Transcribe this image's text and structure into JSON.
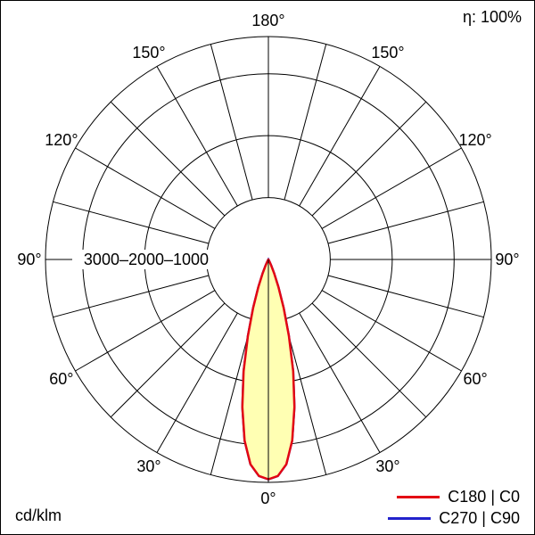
{
  "chart_data": {
    "type": "polar",
    "units": "cd/klm",
    "efficiency": "η: 100%",
    "angle_ticks_deg": [
      0,
      30,
      60,
      90,
      120,
      150,
      180
    ],
    "angle_tick_labels": [
      "0°",
      "30°",
      "60°",
      "90°",
      "120°",
      "150°",
      "180°"
    ],
    "angle_grid_step_deg": 15,
    "radial_ticks": [
      1000,
      2000,
      3000
    ],
    "radial_axis_label": "3000–2000–1000",
    "r_max": 3600,
    "grid_color": "#000000",
    "curve_fill": "#ffffb3",
    "series": [
      {
        "name": "C180 | C0",
        "color": "#e30613",
        "symmetric": true,
        "points": [
          [
            0,
            3550
          ],
          [
            2.5,
            3500
          ],
          [
            5,
            3320
          ],
          [
            7.5,
            2950
          ],
          [
            10,
            2420
          ],
          [
            12.5,
            1850
          ],
          [
            15,
            1280
          ],
          [
            17.5,
            820
          ],
          [
            20,
            470
          ],
          [
            22.5,
            240
          ],
          [
            25,
            110
          ],
          [
            27.5,
            45
          ],
          [
            30,
            12
          ],
          [
            32.5,
            0
          ]
        ]
      },
      {
        "name": "C270 | C90",
        "color": "#2222cc",
        "symmetric": true,
        "points": [
          [
            0,
            3550
          ],
          [
            2.5,
            3500
          ],
          [
            5,
            3320
          ],
          [
            7.5,
            2950
          ],
          [
            10,
            2420
          ],
          [
            12.5,
            1850
          ],
          [
            15,
            1280
          ],
          [
            17.5,
            820
          ],
          [
            20,
            470
          ],
          [
            22.5,
            240
          ],
          [
            25,
            110
          ],
          [
            27.5,
            45
          ],
          [
            30,
            12
          ],
          [
            32.5,
            0
          ]
        ]
      }
    ]
  }
}
